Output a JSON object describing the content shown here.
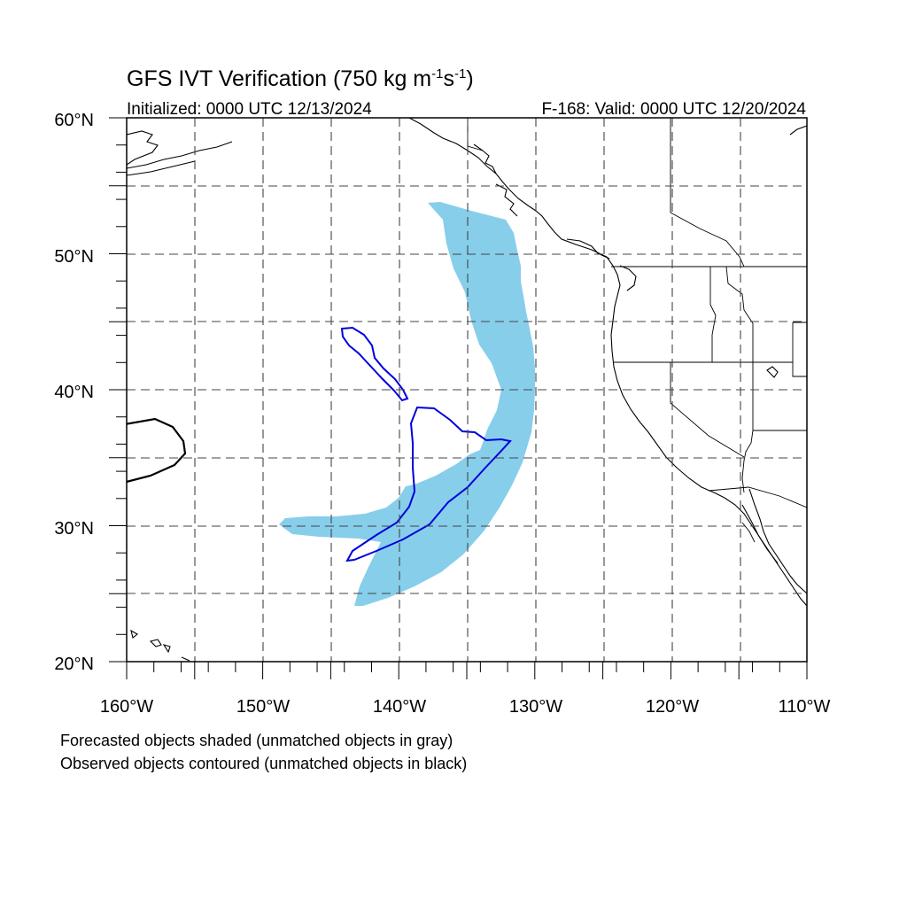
{
  "header": {
    "title_main": "GFS IVT Verification (750 kg m",
    "sup1": "-1",
    "title_mid": "s",
    "sup2": "-1",
    "title_end": ")",
    "initialized": "Initialized: 0000 UTC 12/13/2024",
    "valid": "F-168: Valid: 0000 UTC 12/20/2024"
  },
  "axes": {
    "lon_min": -160,
    "lon_max": -110,
    "lat_min": 20,
    "lat_max": 60,
    "lat_labels": [
      "60°N",
      "50°N",
      "40°N",
      "30°N",
      "20°N"
    ],
    "lon_labels": [
      "160°W",
      "150°W",
      "140°W",
      "130°W",
      "120°W",
      "110°W"
    ]
  },
  "colors": {
    "forecast_fill": "#87ceeb",
    "observed_matched": "#0000dd",
    "observed_unmatched": "#000000",
    "coastline": "#000000",
    "grid": "#444444"
  },
  "legend": {
    "line1": "Forecasted objects shaded (unmatched objects in gray)",
    "line2": "Observed objects contoured (unmatched objects in black)"
  }
}
